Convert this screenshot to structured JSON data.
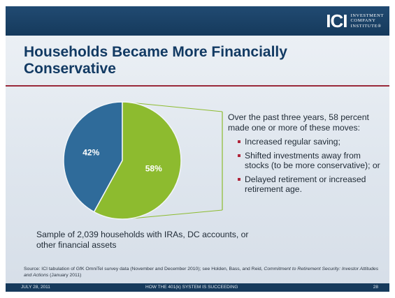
{
  "logo": {
    "mark": "ICI",
    "lines": [
      "INVESTMENT",
      "COMPANY",
      "INSTITUTE®"
    ]
  },
  "title": "Households Became More Financially Conservative",
  "colors": {
    "slice_58": "#8dbb2f",
    "slice_42": "#2f6b9a",
    "title": "#123a63",
    "rule": "#9a2a3a",
    "bullet": "#b0253a"
  },
  "chart_data": {
    "type": "pie",
    "slices": [
      {
        "label": "58%",
        "value": 58,
        "color": "#8dbb2f"
      },
      {
        "label": "42%",
        "value": 42,
        "color": "#2f6b9a"
      }
    ]
  },
  "callout": {
    "intro": "Over the past three years, 58 percent made one or more of these moves:",
    "bullets": [
      "Increased regular saving;",
      "Shifted investments away from stocks (to be more conservative); or",
      "Delayed retirement or increased retirement age."
    ]
  },
  "sample_note": "Sample of 2,039 households with IRAs, DC accounts, or other financial assets",
  "source": {
    "prefix": "Source: ICI tabulation of GfK OmniTel survey data (November and December 2010); see Holden, Bass, and Reid, ",
    "title": "Commitment to Retirement Security: Investor Attitudes and Actions",
    "suffix": " (January 2011)"
  },
  "footer": {
    "date": "JULY 28, 2011",
    "center": "HOW THE 401(k) SYSTEM IS SUCCEEDING",
    "page": "28"
  }
}
